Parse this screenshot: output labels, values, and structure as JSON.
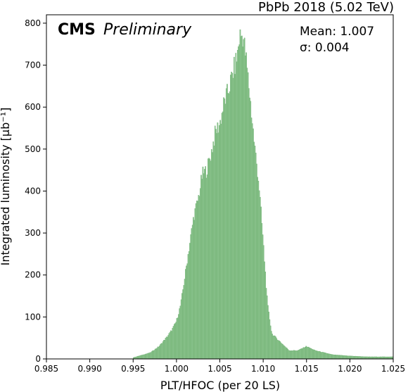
{
  "chart_data": {
    "type": "histogram",
    "top_right_label": "PbPb 2018 (5.02 TeV)",
    "experiment_label": "CMS",
    "status_label": "Preliminary",
    "stats": {
      "mean_label": "Mean: 1.007",
      "sigma_label": "σ: 0.004"
    },
    "xlabel": "PLT/HFOC (per 20 LS)",
    "ylabel": "Integrated luminosity [μb⁻¹]",
    "xlim": [
      0.985,
      1.025
    ],
    "ylim": [
      0,
      820
    ],
    "x_ticks": [
      0.985,
      0.99,
      0.995,
      1.0,
      1.005,
      1.01,
      1.015,
      1.02,
      1.025
    ],
    "x_tick_labels": [
      "0.985",
      "0.990",
      "0.995",
      "1.000",
      "1.005",
      "1.010",
      "1.015",
      "1.020",
      "1.025"
    ],
    "y_ticks": [
      0,
      100,
      200,
      300,
      400,
      500,
      600,
      700,
      800
    ],
    "y_tick_labels": [
      "0",
      "100",
      "200",
      "300",
      "400",
      "500",
      "600",
      "700",
      "800"
    ],
    "bar_color": "#8cc48e",
    "bar_edge_color": "#6fb072",
    "bin_width": 0.0001,
    "approx_bins": {
      "x": [
        0.995,
        0.997,
        0.998,
        0.999,
        0.9995,
        1.0,
        1.0005,
        1.001,
        1.0015,
        1.002,
        1.0025,
        1.003,
        1.0035,
        1.004,
        1.0045,
        1.005,
        1.0055,
        1.006,
        1.0065,
        1.007,
        1.0073,
        1.0077,
        1.008,
        1.0085,
        1.009,
        1.0095,
        1.01,
        1.0105,
        1.011,
        1.012,
        1.013,
        1.014,
        1.015,
        1.016,
        1.018,
        1.02,
        1.022,
        1.025
      ],
      "values": [
        3,
        15,
        30,
        55,
        70,
        90,
        130,
        200,
        270,
        340,
        380,
        440,
        450,
        490,
        540,
        560,
        610,
        640,
        680,
        720,
        770,
        770,
        720,
        620,
        510,
        420,
        280,
        130,
        60,
        40,
        20,
        20,
        30,
        20,
        10,
        7,
        5,
        5
      ]
    }
  }
}
